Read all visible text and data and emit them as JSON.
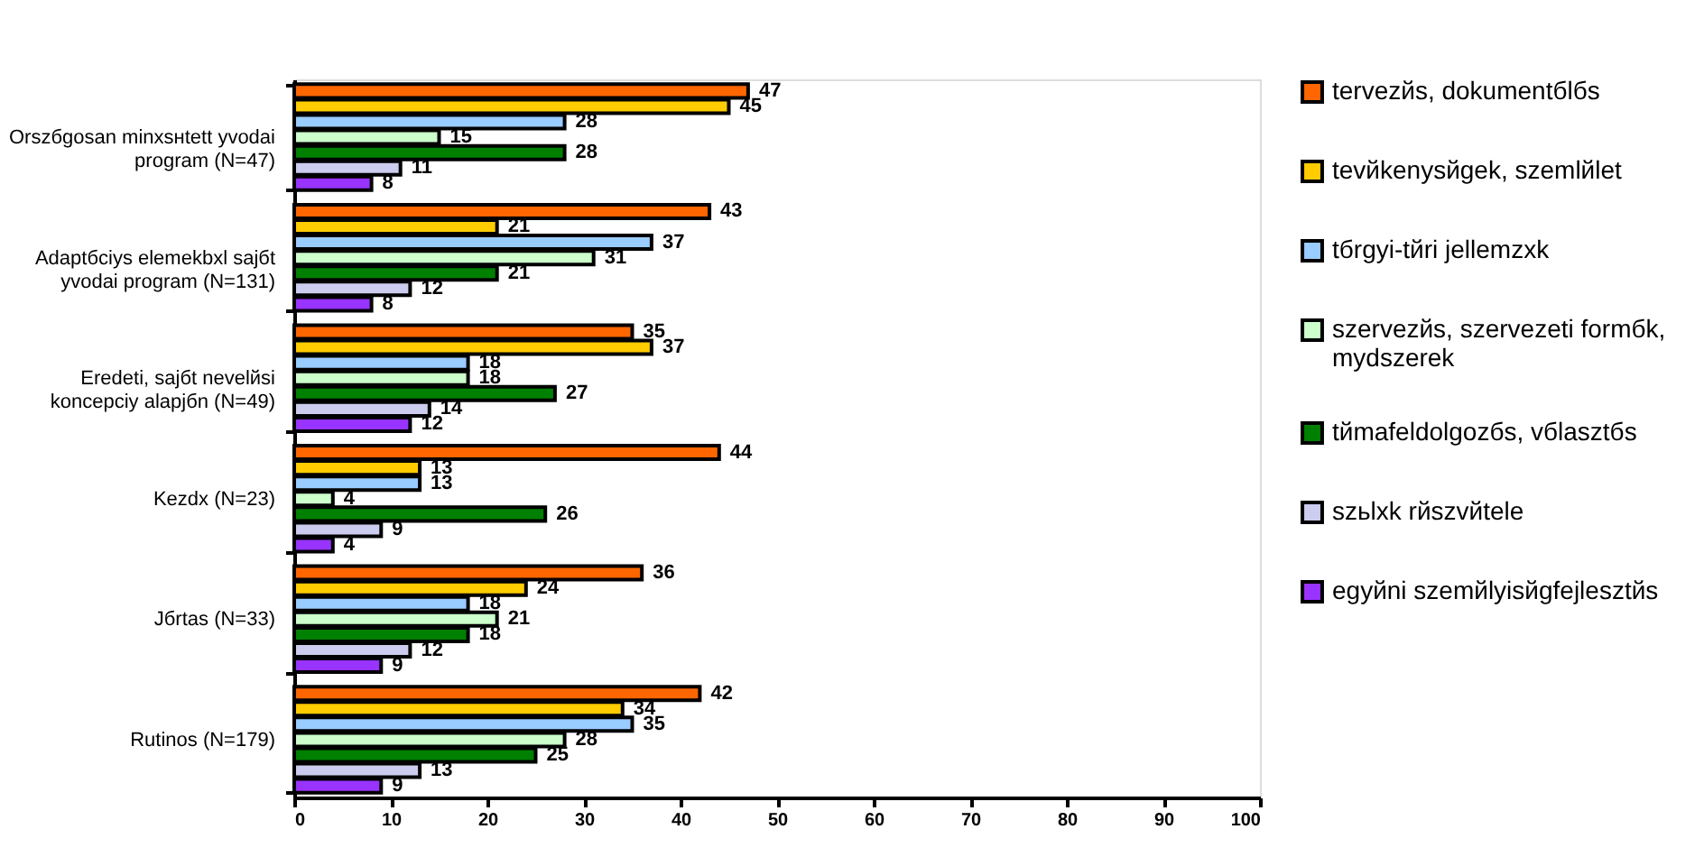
{
  "chart_data": {
    "type": "bar",
    "orientation": "horizontal",
    "categories": [
      "Orszбgosan minхsнtett уvodai program (N=47)",
      "Adaptбciуs elemekbхl sajбt уvodai program (N=131)",
      "Eredeti, sajбt nevelйsi koncepciу alapjбn (N=49)",
      "Kezdх (N=23)",
      "Jбrtas (N=33)",
      "Rutinos (N=179)"
    ],
    "series": [
      {
        "name": "tervezйs, dokumentбlбs",
        "color": "#ff6600",
        "values": [
          47,
          43,
          35,
          44,
          36,
          42
        ]
      },
      {
        "name": "tevйkenysйgek, szemlйlet",
        "color": "#ffcc00",
        "values": [
          45,
          21,
          37,
          13,
          24,
          34
        ]
      },
      {
        "name": "tбrgyi-tйri jellemzхk",
        "color": "#99ccff",
        "values": [
          28,
          37,
          18,
          13,
          18,
          35
        ]
      },
      {
        "name": "szervezйs, szervezeti formбk, mуdszerek",
        "color": "#ccffcc",
        "values": [
          15,
          31,
          18,
          4,
          21,
          28
        ]
      },
      {
        "name": "tйmafeldolgozбs, vбlasztбs",
        "color": "#008000",
        "values": [
          28,
          21,
          27,
          26,
          18,
          25
        ]
      },
      {
        "name": "szьlхk rйszvйtele",
        "color": "#ccccee",
        "values": [
          11,
          12,
          14,
          9,
          12,
          13
        ]
      },
      {
        "name": "egyйni szemйlyisйgfejlesztйs",
        "color": "#9933ff",
        "values": [
          8,
          8,
          12,
          4,
          9,
          9
        ]
      }
    ],
    "xlim": [
      0,
      100
    ],
    "xticks": [
      0,
      10,
      20,
      30,
      40,
      50,
      60,
      70,
      80,
      90,
      100
    ],
    "data_labels": true,
    "grid": false,
    "legend": "right"
  }
}
